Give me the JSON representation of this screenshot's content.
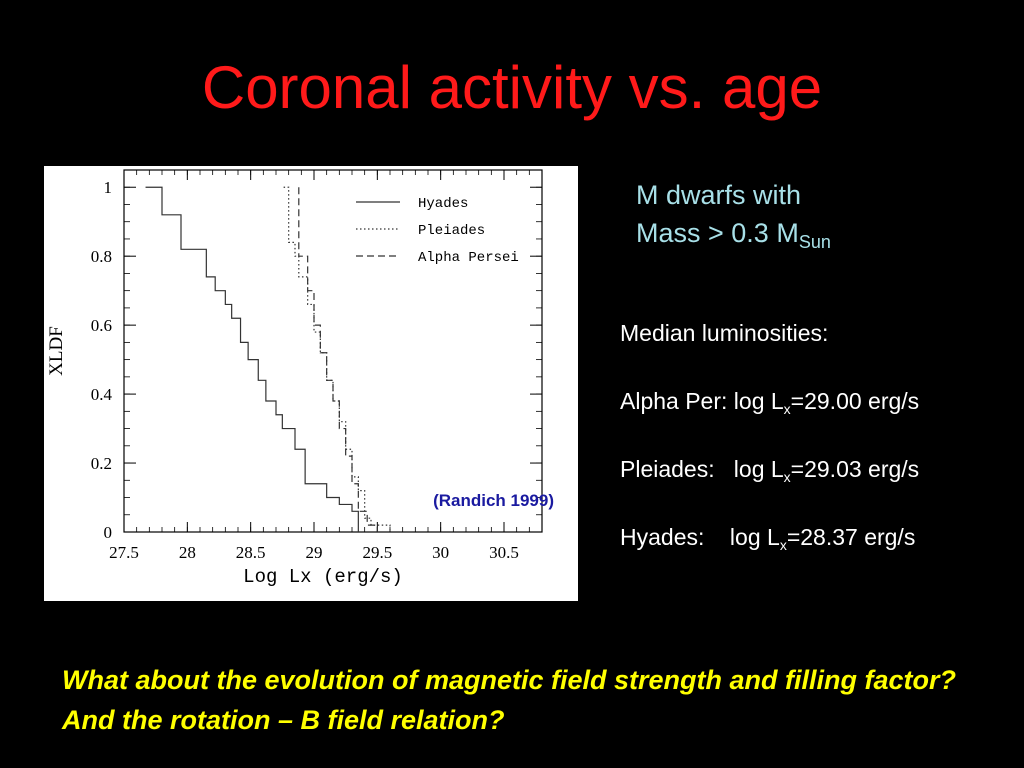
{
  "title": "Coronal activity vs. age",
  "subtitle": {
    "line1": "M dwarfs with",
    "line2_prefix": "Mass > 0.3 M",
    "line2_sub": "Sun"
  },
  "medians": {
    "heading": "Median luminosities:",
    "rows": [
      {
        "label": "Alpha Per: log L",
        "sub": "x",
        "value": "=29.00 erg/s"
      },
      {
        "label": "Pleiades:   log L",
        "sub": "x",
        "value": "=29.03 erg/s"
      },
      {
        "label": "Hyades:    log L",
        "sub": "x",
        "value": "=28.37 erg/s"
      }
    ]
  },
  "question": "What about the evolution of magnetic field strength and filling factor? And the rotation – B field relation?",
  "colors": {
    "title": "#ff1a1a",
    "subtitle": "#a8e0e8",
    "question": "#ffff00",
    "citation": "#1a1aa0"
  },
  "chart_data": {
    "type": "line",
    "step": true,
    "xlabel": "Log Lx  (erg/s)",
    "ylabel": "XLDF",
    "xlim": [
      27.5,
      30.8
    ],
    "ylim": [
      0,
      1.05
    ],
    "xticks": [
      "27.5",
      "28",
      "28.5",
      "29",
      "29.5",
      "30",
      "30.5"
    ],
    "yticks": [
      "0",
      "0.2",
      "0.4",
      "0.6",
      "0.8",
      "1"
    ],
    "annotation": "(Randich 1999)",
    "legend_position": "top-right",
    "series": [
      {
        "name": "Hyades",
        "style": "solid",
        "x": [
          27.67,
          27.8,
          27.95,
          28.05,
          28.15,
          28.22,
          28.3,
          28.35,
          28.42,
          28.48,
          28.56,
          28.62,
          28.7,
          28.75,
          28.85,
          28.93,
          29.1,
          29.2,
          29.3,
          29.35
        ],
        "y": [
          1.0,
          0.92,
          0.82,
          0.82,
          0.74,
          0.7,
          0.66,
          0.62,
          0.55,
          0.5,
          0.44,
          0.38,
          0.34,
          0.3,
          0.24,
          0.14,
          0.1,
          0.08,
          0.06,
          0.0
        ]
      },
      {
        "name": "Pleiades",
        "style": "dotted",
        "x": [
          28.76,
          28.8,
          28.85,
          28.88,
          28.95,
          29.0,
          29.05,
          29.1,
          29.15,
          29.2,
          29.25,
          29.3,
          29.35,
          29.4,
          29.45,
          29.6
        ],
        "y": [
          1.0,
          0.84,
          0.8,
          0.74,
          0.66,
          0.58,
          0.52,
          0.44,
          0.38,
          0.32,
          0.24,
          0.16,
          0.12,
          0.04,
          0.02,
          0.0
        ]
      },
      {
        "name": "Alpha Persei",
        "style": "dashed",
        "x": [
          28.88,
          28.88,
          28.95,
          29.0,
          29.05,
          29.1,
          29.15,
          29.2,
          29.25,
          29.3,
          29.35,
          29.42,
          29.5
        ],
        "y": [
          1.0,
          0.8,
          0.7,
          0.6,
          0.52,
          0.44,
          0.38,
          0.3,
          0.22,
          0.14,
          0.06,
          0.02,
          0.0
        ]
      }
    ]
  }
}
